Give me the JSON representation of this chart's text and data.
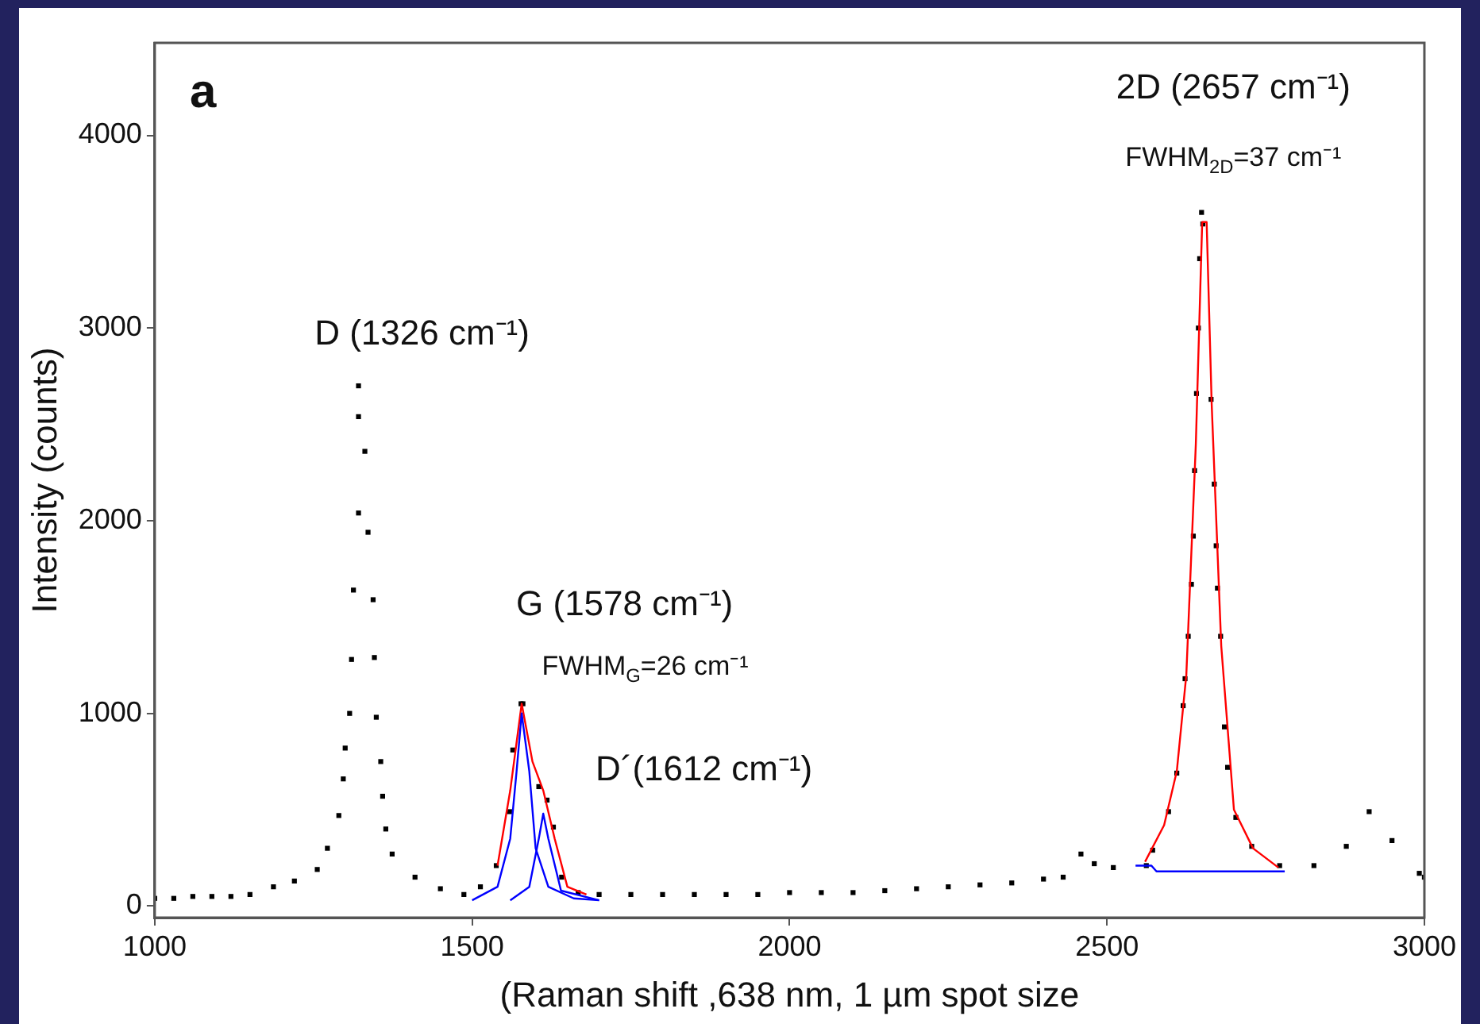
{
  "chart_data": {
    "type": "scatter",
    "xlabel": "(Raman shift ,638 nm, 1 µm spot size",
    "ylabel": "Intensity (counts)",
    "xlim": [
      1000,
      3000
    ],
    "xticks": [
      1000,
      1500,
      2000,
      2500,
      3000
    ],
    "ylim": [
      -60,
      4480
    ],
    "yticks": [
      0,
      1000,
      2000,
      3000,
      4000
    ],
    "grid": false,
    "legend": false,
    "marker": "square",
    "annotations": [
      "a",
      {
        "text": "D (1326 cm⁻¹)",
        "x": 1321,
        "y": 2700
      },
      {
        "text": "G (1578 cm⁻¹)",
        "x": 1580,
        "y": 1050
      },
      {
        "text": "FWHM$_{G}$=26 cm⁻¹",
        "x": 1580,
        "y": 1050
      },
      {
        "text": "D´(1612 cm⁻¹)",
        "x": 1605,
        "y": 620
      },
      "2D (2657 cm⁻¹)",
      {
        "text": "FWHM$_{2D}$=37 cm⁻¹",
        "x": 2649,
        "y": 3600
      }
    ],
    "series": [
      {
        "type": "scatter",
        "color": "#000000",
        "x": [
          1000,
          1030,
          1060,
          1090,
          1120,
          1150,
          1187,
          1220,
          1256,
          1272,
          1290,
          1297,
          1300,
          1307,
          1310,
          1313,
          1321,
          1321,
          1321,
          1331,
          1336,
          1344,
          1346,
          1349,
          1356,
          1359,
          1364,
          1374,
          1410,
          1450,
          1487,
          1513,
          1538,
          1559,
          1564,
          1577,
          1580,
          1605,
          1618,
          1628,
          1641,
          1667,
          1700,
          1750,
          1800,
          1850,
          1900,
          1950,
          2000,
          2050,
          2100,
          2150,
          2200,
          2250,
          2300,
          2350,
          2400,
          2431,
          2459,
          2480,
          2510,
          2562,
          2572,
          2597,
          2610,
          2620,
          2623,
          2628,
          2633,
          2636,
          2638,
          2641,
          2644,
          2646,
          2649,
          2651,
          2664,
          2669,
          2672,
          2674,
          2679,
          2685,
          2690,
          2703,
          2728,
          2772,
          2826,
          2877,
          2913,
          2949,
          2992,
          3000
        ],
        "values": [
          40,
          40,
          50,
          50,
          50,
          60,
          100,
          130,
          190,
          300,
          470,
          660,
          820,
          1000,
          1280,
          1640,
          2040,
          2540,
          2700,
          2360,
          1940,
          1590,
          1290,
          980,
          750,
          570,
          400,
          270,
          150,
          90,
          60,
          100,
          210,
          490,
          810,
          1050,
          1050,
          620,
          550,
          410,
          150,
          70,
          60,
          60,
          60,
          60,
          60,
          60,
          70,
          70,
          70,
          80,
          90,
          100,
          110,
          120,
          140,
          150,
          270,
          220,
          200,
          210,
          290,
          490,
          690,
          1040,
          1180,
          1400,
          1670,
          1920,
          2260,
          2660,
          3000,
          3360,
          3600,
          3540,
          2630,
          2190,
          1870,
          1650,
          1400,
          930,
          720,
          460,
          310,
          210,
          210,
          310,
          490,
          340,
          170,
          150
        ]
      },
      {
        "type": "line",
        "color": "#ff0000",
        "marker": "none",
        "x": [
          1540,
          1560,
          1578,
          1595,
          1612,
          1630,
          1650,
          1680
        ],
        "values": [
          210,
          600,
          1050,
          750,
          600,
          350,
          100,
          60
        ]
      },
      {
        "type": "line",
        "color": "#ff0000",
        "marker": "none",
        "x": [
          2560,
          2590,
          2610,
          2625,
          2640,
          2650,
          2657,
          2665,
          2680,
          2700,
          2730,
          2770
        ],
        "values": [
          230,
          420,
          700,
          1200,
          2400,
          3550,
          3550,
          2600,
          1350,
          500,
          300,
          200
        ]
      },
      {
        "type": "line",
        "color": "#0000ff",
        "marker": "none",
        "x": [
          1500,
          1540,
          1560,
          1570,
          1578,
          1590,
          1600,
          1620,
          1660,
          1700
        ],
        "values": [
          30,
          100,
          350,
          700,
          1000,
          700,
          300,
          100,
          40,
          30
        ]
      },
      {
        "type": "line",
        "color": "#0000ff",
        "marker": "none",
        "x": [
          1560,
          1590,
          1605,
          1612,
          1620,
          1640,
          1700
        ],
        "values": [
          30,
          100,
          350,
          480,
          350,
          80,
          30
        ]
      },
      {
        "type": "line",
        "color": "#0000ff",
        "marker": "none",
        "x": [
          2545,
          2570,
          2578,
          2780
        ],
        "values": [
          210,
          210,
          180,
          180
        ]
      }
    ]
  }
}
